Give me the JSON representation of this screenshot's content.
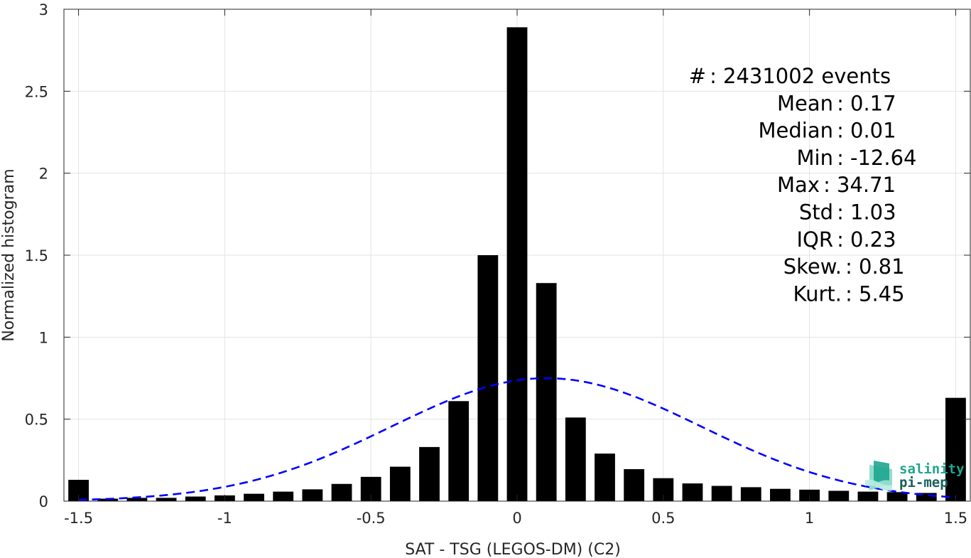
{
  "chart_data": {
    "type": "bar",
    "xlabel": "SAT - TSG (LEGOS-DM) (C2)",
    "ylabel": "Normalized histogram",
    "xlim": [
      -1.55,
      1.55
    ],
    "ylim": [
      0,
      3
    ],
    "grid": true,
    "bar_width": 0.07,
    "xticks": [
      -1.5,
      -1,
      -0.5,
      0,
      0.5,
      1,
      1.5
    ],
    "xtick_labels": [
      "-1.5",
      "-1",
      "-0.5",
      "0",
      "0.5",
      "1",
      "1.5"
    ],
    "yticks": [
      0,
      0.5,
      1,
      1.5,
      2,
      2.5,
      3
    ],
    "ytick_labels": [
      "0",
      "0.5",
      "1",
      "1.5",
      "2",
      "2.5",
      "3"
    ],
    "bars": [
      {
        "x": -1.5,
        "y": 0.13
      },
      {
        "x": -1.4,
        "y": 0.015
      },
      {
        "x": -1.3,
        "y": 0.02
      },
      {
        "x": -1.2,
        "y": 0.02
      },
      {
        "x": -1.1,
        "y": 0.028
      },
      {
        "x": -1.0,
        "y": 0.035
      },
      {
        "x": -0.9,
        "y": 0.045
      },
      {
        "x": -0.8,
        "y": 0.058
      },
      {
        "x": -0.7,
        "y": 0.072
      },
      {
        "x": -0.6,
        "y": 0.105
      },
      {
        "x": -0.5,
        "y": 0.148
      },
      {
        "x": -0.4,
        "y": 0.21
      },
      {
        "x": -0.3,
        "y": 0.33
      },
      {
        "x": -0.2,
        "y": 0.61
      },
      {
        "x": -0.1,
        "y": 1.5
      },
      {
        "x": 0.0,
        "y": 2.89
      },
      {
        "x": 0.1,
        "y": 1.33
      },
      {
        "x": 0.2,
        "y": 0.51
      },
      {
        "x": 0.3,
        "y": 0.29
      },
      {
        "x": 0.4,
        "y": 0.195
      },
      {
        "x": 0.5,
        "y": 0.14
      },
      {
        "x": 0.6,
        "y": 0.108
      },
      {
        "x": 0.7,
        "y": 0.093
      },
      {
        "x": 0.8,
        "y": 0.085
      },
      {
        "x": 0.9,
        "y": 0.075
      },
      {
        "x": 1.0,
        "y": 0.07
      },
      {
        "x": 1.1,
        "y": 0.063
      },
      {
        "x": 1.2,
        "y": 0.058
      },
      {
        "x": 1.3,
        "y": 0.055
      },
      {
        "x": 1.4,
        "y": 0.05
      },
      {
        "x": 1.5,
        "y": 0.63
      }
    ],
    "fit_curve": {
      "type": "normal",
      "mean": 0.1,
      "sigma": 0.53,
      "peak": 0.75,
      "x_range": [
        -1.5,
        1.5
      ],
      "color": "#0000ff",
      "style": "dashed"
    },
    "bar_color": "#000000"
  },
  "stats": [
    {
      "label": "#  ",
      "value": "2431002 events"
    },
    {
      "label": "Mean",
      "value": "0.17"
    },
    {
      "label": "Median",
      "value": "0.01"
    },
    {
      "label": "Min",
      "value": "-12.64"
    },
    {
      "label": "Max",
      "value": "34.71"
    },
    {
      "label": "Std",
      "value": "1.03"
    },
    {
      "label": "IQR",
      "value": "0.23"
    },
    {
      "label": "Skew.",
      "value": "0.81"
    },
    {
      "label": "Kurt.",
      "value": "5.45"
    }
  ],
  "logo": {
    "line1": "salinity",
    "line2": "pi-mep",
    "color_primary": "#1fa58f",
    "color_secondary": "#17605a"
  }
}
